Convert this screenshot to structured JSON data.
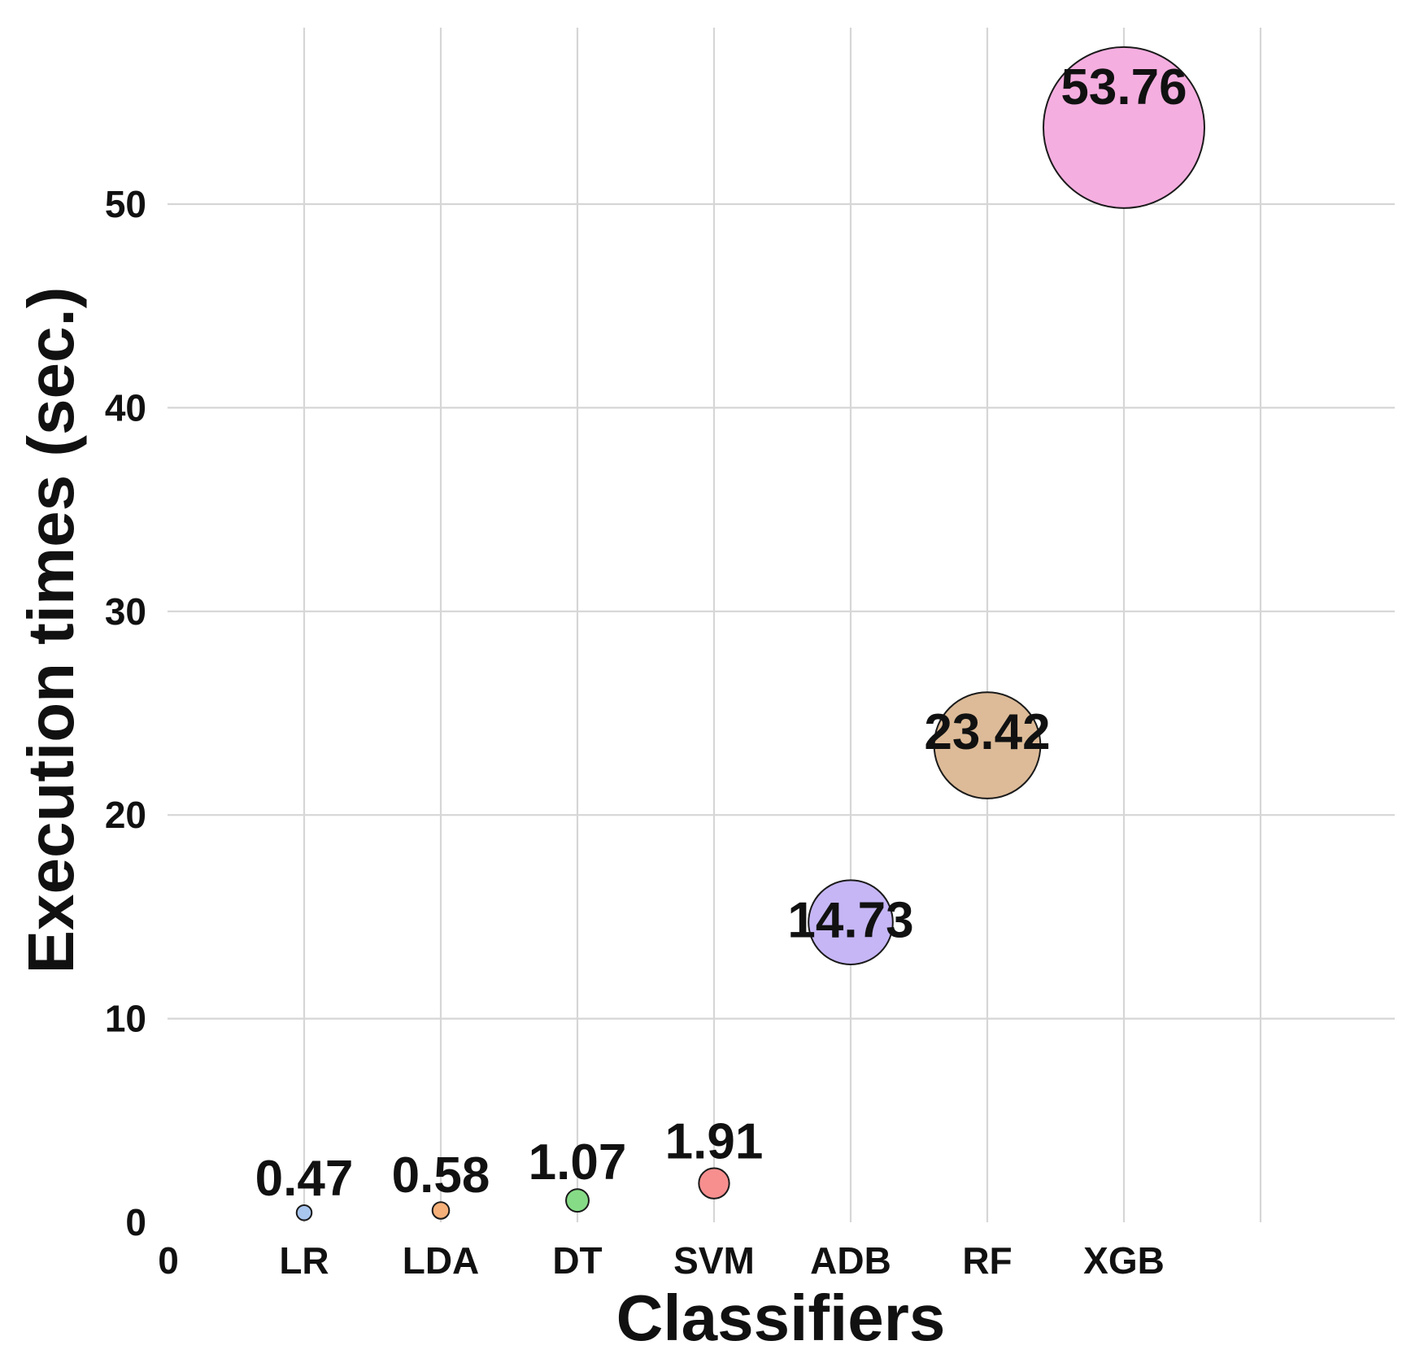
{
  "chart_data": {
    "type": "scatter",
    "subtype": "bubble",
    "title": "",
    "xlabel": "Classifiers",
    "ylabel": "Execution times (sec.)",
    "categories": [
      "LR",
      "LDA",
      "DT",
      "SVM",
      "ADB",
      "RF",
      "XGB"
    ],
    "x_origin_label": "0",
    "values": [
      0.47,
      0.58,
      1.07,
      1.91,
      14.73,
      23.42,
      53.76
    ],
    "value_labels": [
      "0.47",
      "0.58",
      "1.07",
      "1.91",
      "14.73",
      "23.42",
      "53.76"
    ],
    "colors": [
      "#a9c6ef",
      "#f6b07a",
      "#86dc86",
      "#f78f8f",
      "#c6b6f6",
      "#ddbb98",
      "#f5aee0"
    ],
    "ylim": [
      0,
      56
    ],
    "xlim": [
      0,
      9
    ],
    "yticks": [
      0,
      10,
      20,
      30,
      40,
      50
    ],
    "ytick_labels": [
      "0",
      "10",
      "20",
      "30",
      "40",
      "50"
    ],
    "size_encodes": "value",
    "grid": true,
    "legend": "none"
  }
}
